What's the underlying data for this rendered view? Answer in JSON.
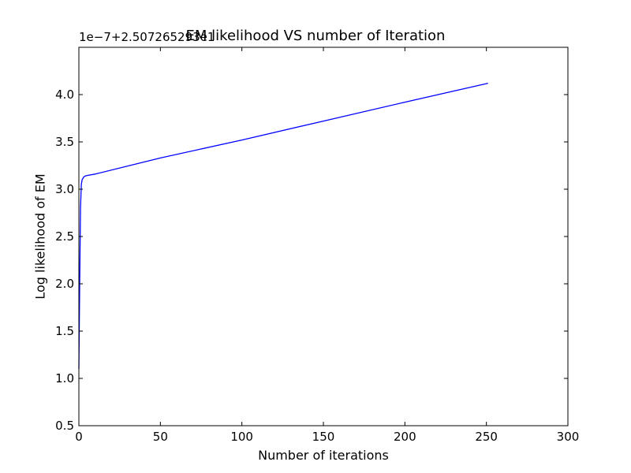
{
  "chart_data": {
    "type": "line",
    "title": "EM likelihood VS number of Iteration",
    "xlabel": "Number of iterations",
    "ylabel": "Log likelihood of EM",
    "offset_text": "1e−7+2.507265293e1",
    "xlim": [
      0,
      300
    ],
    "ylim": [
      0.5,
      4.5
    ],
    "x_ticks": [
      0,
      50,
      100,
      150,
      200,
      250,
      300
    ],
    "x_tick_labels": [
      "0",
      "50",
      "100",
      "150",
      "200",
      "250",
      "300"
    ],
    "y_ticks": [
      0.5,
      1.0,
      1.5,
      2.0,
      2.5,
      3.0,
      3.5,
      4.0
    ],
    "y_tick_labels": [
      "0.5",
      "1.0",
      "1.5",
      "2.0",
      "2.5",
      "3.0",
      "3.5",
      "4.0"
    ],
    "grid": false,
    "series": [
      {
        "color": "#0000ff",
        "x": [
          0,
          0.5,
          1,
          1.5,
          2,
          3,
          4,
          5,
          10,
          50,
          100,
          150,
          200,
          251
        ],
        "y": [
          1.1,
          2.0,
          2.8,
          3.05,
          3.1,
          3.13,
          3.14,
          3.145,
          3.16,
          3.33,
          3.52,
          3.72,
          3.92,
          4.12
        ]
      }
    ]
  }
}
